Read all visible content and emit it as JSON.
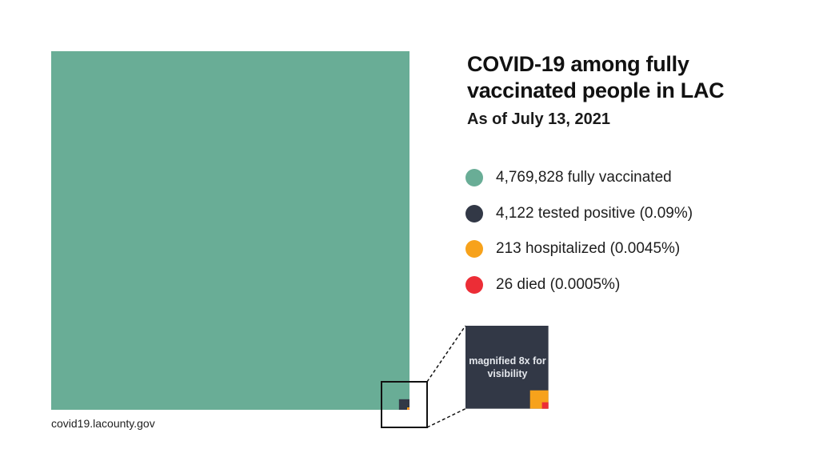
{
  "colors": {
    "vaccinated": "#69ad96",
    "positive": "#323846",
    "hospitalized": "#f7a21b",
    "died": "#ec2d36"
  },
  "chart_data": {
    "type": "area",
    "title": "COVID-19 among fully vaccinated people in LAC",
    "subtitle": "As of July 13, 2021",
    "series": [
      {
        "name": "fully vaccinated",
        "value": 4769828,
        "label": "4,769,828 fully vaccinated",
        "color": "#69ad96"
      },
      {
        "name": "tested positive",
        "value": 4122,
        "percent": 0.09,
        "label": "4,122 tested positive (0.09%)",
        "color": "#323846"
      },
      {
        "name": "hospitalized",
        "value": 213,
        "percent": 0.0045,
        "label": "213 hospitalized (0.0045%)",
        "color": "#f7a21b"
      },
      {
        "name": "died",
        "value": 26,
        "percent": 0.0005,
        "label": "26 died (0.0005%)",
        "color": "#ec2d36"
      }
    ],
    "inset": {
      "caption": "magnified 8x for visibility",
      "magnification": 8
    },
    "source": "covid19.lacounty.gov"
  }
}
